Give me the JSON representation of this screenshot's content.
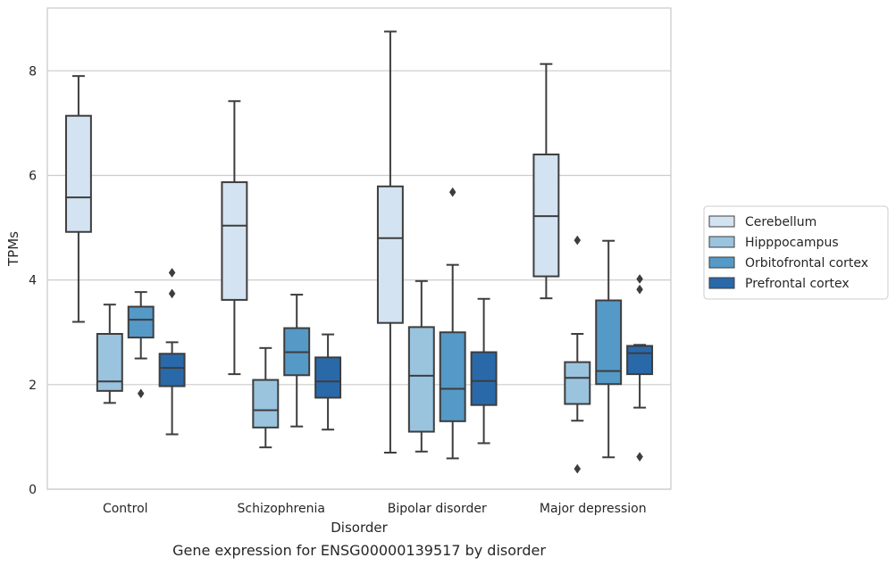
{
  "chart_data": {
    "type": "boxplot",
    "title": "Gene expression for ENSG00000139517 by disorder",
    "xlabel": "Disorder",
    "ylabel": "TPMs",
    "ylim": [
      0,
      9.2
    ],
    "yticks": [
      0,
      2,
      4,
      6,
      8
    ],
    "grid": "horizontal",
    "legend_position": "right",
    "categories": [
      "Control",
      "Schizophrenia",
      "Bipolar disorder",
      "Major depression"
    ],
    "series": [
      {
        "name": "Cerebellum",
        "color": "#d4e3f2",
        "boxes": [
          {
            "whisker_low": 3.2,
            "q1": 4.92,
            "median": 5.58,
            "q3": 7.14,
            "whisker_high": 7.9,
            "outliers": []
          },
          {
            "whisker_low": 2.2,
            "q1": 3.62,
            "median": 5.04,
            "q3": 5.87,
            "whisker_high": 7.42,
            "outliers": []
          },
          {
            "whisker_low": 0.7,
            "q1": 3.18,
            "median": 4.8,
            "q3": 5.79,
            "whisker_high": 8.75,
            "outliers": []
          },
          {
            "whisker_low": 3.65,
            "q1": 4.07,
            "median": 5.22,
            "q3": 6.4,
            "whisker_high": 8.13,
            "outliers": []
          }
        ]
      },
      {
        "name": "Hipppocampus",
        "color": "#9ac3de",
        "boxes": [
          {
            "whisker_low": 1.65,
            "q1": 1.88,
            "median": 2.06,
            "q3": 2.97,
            "whisker_high": 3.53,
            "outliers": []
          },
          {
            "whisker_low": 0.8,
            "q1": 1.18,
            "median": 1.51,
            "q3": 2.09,
            "whisker_high": 2.7,
            "outliers": []
          },
          {
            "whisker_low": 0.72,
            "q1": 1.1,
            "median": 2.17,
            "q3": 3.1,
            "whisker_high": 3.98,
            "outliers": []
          },
          {
            "whisker_low": 1.31,
            "q1": 1.63,
            "median": 2.13,
            "q3": 2.43,
            "whisker_high": 2.97,
            "outliers": [
              0.39,
              4.76
            ]
          }
        ]
      },
      {
        "name": "Orbitofrontal cortex",
        "color": "#5599c7",
        "boxes": [
          {
            "whisker_low": 2.5,
            "q1": 2.9,
            "median": 3.24,
            "q3": 3.49,
            "whisker_high": 3.77,
            "outliers": [
              1.83
            ]
          },
          {
            "whisker_low": 1.2,
            "q1": 2.18,
            "median": 2.62,
            "q3": 3.08,
            "whisker_high": 3.72,
            "outliers": []
          },
          {
            "whisker_low": 0.59,
            "q1": 1.3,
            "median": 1.92,
            "q3": 3.0,
            "whisker_high": 4.29,
            "outliers": [
              5.68
            ]
          },
          {
            "whisker_low": 0.61,
            "q1": 2.01,
            "median": 2.26,
            "q3": 3.61,
            "whisker_high": 4.75,
            "outliers": []
          }
        ]
      },
      {
        "name": "Prefrontal cortex",
        "color": "#2a69a9",
        "boxes": [
          {
            "whisker_low": 1.05,
            "q1": 1.97,
            "median": 2.32,
            "q3": 2.59,
            "whisker_high": 2.81,
            "outliers": [
              3.74,
              4.14
            ]
          },
          {
            "whisker_low": 1.14,
            "q1": 1.75,
            "median": 2.06,
            "q3": 2.52,
            "whisker_high": 2.96,
            "outliers": []
          },
          {
            "whisker_low": 0.88,
            "q1": 1.61,
            "median": 2.07,
            "q3": 2.62,
            "whisker_high": 3.64,
            "outliers": []
          },
          {
            "whisker_low": 1.56,
            "q1": 2.2,
            "median": 2.6,
            "q3": 2.74,
            "whisker_high": 2.76,
            "outliers": [
              0.62,
              3.82,
              4.02
            ]
          }
        ]
      }
    ]
  }
}
